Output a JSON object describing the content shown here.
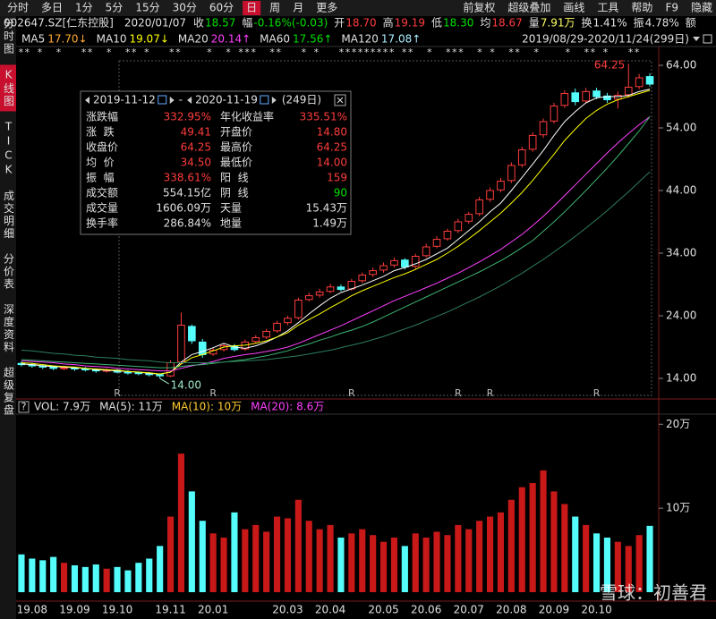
{
  "toolbar": {
    "left_tabs": [
      "分时",
      "多日",
      "1分",
      "5分",
      "15分",
      "30分",
      "60分",
      "日",
      "周",
      "月",
      "更多"
    ],
    "active_tab": 7,
    "right_tabs": [
      "前复权",
      "超级叠加",
      "画线",
      "工具",
      "帮助",
      "F9",
      "隐藏"
    ]
  },
  "quote_bar": {
    "code": "002647.SZ[仁东控股]",
    "date": "2020/01/07",
    "items": [
      {
        "label": "收",
        "value": "18.57",
        "color": "#00e000"
      },
      {
        "label": "幅",
        "value": "-0.16%(-0.03)",
        "color": "#00e000"
      },
      {
        "label": "开",
        "value": "18.70",
        "color": "#ff3c3c"
      },
      {
        "label": "高",
        "value": "19.19",
        "color": "#ff3c3c"
      },
      {
        "label": "低",
        "value": "18.30",
        "color": "#00e000"
      },
      {
        "label": "均",
        "value": "18.67",
        "color": "#ff3c3c"
      },
      {
        "label": "量",
        "value": "7.91万",
        "color": "#ffff66"
      },
      {
        "label": "换",
        "value": "1.41%",
        "color": "#e0e0e0"
      },
      {
        "label": "振",
        "value": "4.78%",
        "color": "#e0e0e0"
      },
      {
        "label": "额"
      }
    ]
  },
  "range": "2019/08/29-2020/11/24(299日)",
  "stars": "** *  *   **  *  ** *   **    *  * ***  **   * *   ********* **  *  ***  * *  **  *    *  ** *   **",
  "sidebar": {
    "tabs": [
      "分时图",
      "K线图",
      "TICK",
      "成交明细",
      "分价表",
      "深度资料",
      "超级复盘"
    ],
    "active_tab": 1
  },
  "stats_panel": {
    "start": "2019-11-12",
    "separator": "-",
    "end": "2020-11-19",
    "days": "(249日)",
    "rows": [
      [
        "涨跌幅",
        "332.95%",
        "年化收益率",
        "335.51%"
      ],
      [
        "涨  跌",
        "49.41",
        "开盘价",
        "14.80"
      ],
      [
        "收盘价",
        "64.25",
        "最高价",
        "64.25"
      ],
      [
        "均  价",
        "34.50",
        "最低价",
        "14.00"
      ],
      [
        "振  幅",
        "338.61%",
        "阳  线",
        "159"
      ],
      [
        "成交额",
        "554.15亿",
        "阴  线",
        "90"
      ],
      [
        "成交量",
        "1606.09万",
        "天量",
        "15.43万"
      ],
      [
        "换手率",
        "286.84%",
        "地量",
        "1.49万"
      ]
    ],
    "value_colors": [
      [
        "#ff3c3c",
        "#ff3c3c"
      ],
      [
        "#ff3c3c",
        "#ff3c3c"
      ],
      [
        "#ff3c3c",
        "#ff3c3c"
      ],
      [
        "#ff3c3c",
        "#ff3c3c"
      ],
      [
        "#ff3c3c",
        "#ff3c3c"
      ],
      [
        "#e0e0e0",
        "#00e000"
      ],
      [
        "#e0e0e0",
        "#e0e0e0"
      ],
      [
        "#e0e0e0",
        "#e0e0e0"
      ]
    ]
  },
  "volume_legend": {
    "help": "?",
    "items": [
      {
        "text": "VOL: 7.9万",
        "color": "#e0e0e0"
      },
      {
        "text": "MA(5): 11万",
        "color": "#e0e0e0"
      },
      {
        "text": "MA(10): 10万",
        "color": "#ffcc33"
      },
      {
        "text": "MA(20): 8.6万",
        "color": "#ff40ff"
      }
    ]
  },
  "watermark": "雪球：初善君",
  "chart_data": [
    {
      "type": "candlestick",
      "up_color": "#ff3c3c",
      "down_color": "#54fcfc",
      "open": [
        16.4,
        16.2,
        16.0,
        15.8,
        15.6,
        15.7,
        15.5,
        15.4,
        15.2,
        15.3,
        15.0,
        14.9,
        14.8,
        14.6,
        14.4,
        16.6,
        22.3,
        19.8,
        17.9,
        18.6,
        19.2,
        18.7,
        19.9,
        20.6,
        21.6,
        22.9,
        23.7,
        26.6,
        27.3,
        27.9,
        28.6,
        28.3,
        29.6,
        30.6,
        31.3,
        32.1,
        32.9,
        31.9,
        33.6,
        35.1,
        36.3,
        37.6,
        39.1,
        40.3,
        42.6,
        44.1,
        45.6,
        48.1,
        50.6,
        52.9,
        55.1,
        57.6,
        59.6,
        58.3,
        59.9,
        59.1,
        58.6,
        59.3,
        60.6,
        62.2
      ],
      "high": [
        16.7,
        16.5,
        16.2,
        16.0,
        16.0,
        15.9,
        15.8,
        15.6,
        15.6,
        15.5,
        15.3,
        15.1,
        15.0,
        14.8,
        16.9,
        24.5,
        22.6,
        20.3,
        18.9,
        19.6,
        19.5,
        20.2,
        20.9,
        21.9,
        23.2,
        24.0,
        26.9,
        27.7,
        28.3,
        29.1,
        29.0,
        29.9,
        30.9,
        31.7,
        32.5,
        33.3,
        33.2,
        33.9,
        35.5,
        36.7,
        37.9,
        39.5,
        40.6,
        43.0,
        44.5,
        46.0,
        48.5,
        51.0,
        53.3,
        55.5,
        58.0,
        60.0,
        60.3,
        60.4,
        60.4,
        59.6,
        59.8,
        64.25,
        62.6,
        62.7
      ],
      "low": [
        15.9,
        15.7,
        15.5,
        15.3,
        15.3,
        15.2,
        15.1,
        14.9,
        14.9,
        14.8,
        14.6,
        14.5,
        14.3,
        14.0,
        14.2,
        16.3,
        19.5,
        17.3,
        17.6,
        18.3,
        18.3,
        18.4,
        19.6,
        20.3,
        21.3,
        22.5,
        23.4,
        26.3,
        26.9,
        27.6,
        27.9,
        28.0,
        29.2,
        30.2,
        30.9,
        31.7,
        31.4,
        31.5,
        33.3,
        34.8,
        36.0,
        37.2,
        38.7,
        39.9,
        42.2,
        43.7,
        45.2,
        47.7,
        50.2,
        52.4,
        54.7,
        57.2,
        57.6,
        57.9,
        58.6,
        58.0,
        57.1,
        58.8,
        60.2,
        60.6
      ],
      "close": [
        16.2,
        16.0,
        15.8,
        15.6,
        15.7,
        15.5,
        15.4,
        15.2,
        15.3,
        15.0,
        14.9,
        14.8,
        14.6,
        14.4,
        16.5,
        22.5,
        20.0,
        17.8,
        18.5,
        19.2,
        18.6,
        19.8,
        20.5,
        21.5,
        22.8,
        23.6,
        26.5,
        27.2,
        27.8,
        28.6,
        28.2,
        29.5,
        30.5,
        31.2,
        32.0,
        32.8,
        31.8,
        33.5,
        35.0,
        36.2,
        37.5,
        39.0,
        40.2,
        42.5,
        44.0,
        45.5,
        48.0,
        50.5,
        52.8,
        55.0,
        57.5,
        59.5,
        58.2,
        59.8,
        59.0,
        58.5,
        59.2,
        60.5,
        62.0,
        61.0
      ],
      "series": [
        {
          "name": "MA5",
          "label": "17.70↓",
          "label_color": "#ffaa33",
          "color": "#ffffff",
          "values": [
            16.3,
            16.2,
            16.0,
            15.9,
            15.8,
            15.7,
            15.6,
            15.4,
            15.3,
            15.2,
            15.1,
            15.0,
            14.8,
            14.7,
            15.0,
            16.6,
            17.8,
            18.3,
            18.9,
            19.6,
            19.0,
            18.8,
            19.2,
            19.8,
            20.6,
            21.6,
            22.9,
            24.3,
            25.6,
            26.8,
            27.7,
            28.3,
            28.9,
            29.6,
            30.3,
            31.2,
            31.7,
            32.3,
            33.0,
            33.9,
            34.8,
            36.2,
            37.6,
            39.0,
            40.6,
            42.0,
            44.0,
            46.1,
            48.2,
            50.4,
            52.8,
            55.0,
            56.6,
            58.0,
            58.8,
            59.0,
            59.0,
            59.2,
            59.8,
            60.2
          ]
        },
        {
          "name": "MA10",
          "label": "19.07↓",
          "label_color": "#ffff00",
          "color": "#ffff00",
          "values": [
            16.5,
            16.4,
            16.2,
            16.0,
            15.9,
            15.8,
            15.6,
            15.5,
            15.4,
            15.3,
            15.1,
            15.0,
            14.9,
            14.7,
            15.0,
            16.3,
            17.3,
            17.8,
            18.4,
            19.0,
            19.2,
            19.3,
            19.6,
            20.0,
            20.6,
            21.3,
            22.5,
            23.4,
            24.3,
            25.3,
            26.2,
            27.2,
            28.0,
            28.7,
            29.4,
            30.1,
            30.7,
            31.4,
            32.2,
            33.0,
            34.0,
            35.1,
            36.3,
            37.6,
            39.0,
            40.4,
            42.0,
            43.7,
            45.6,
            47.7,
            49.8,
            52.0,
            53.8,
            55.5,
            56.8,
            57.8,
            58.5,
            59.0,
            59.5,
            60.0
          ]
        },
        {
          "name": "MA20",
          "label": "20.14↑",
          "label_color": "#ff40ff",
          "color": "#ff40ff",
          "values": [
            16.8,
            16.7,
            16.6,
            16.5,
            16.3,
            16.2,
            16.0,
            15.9,
            15.8,
            15.6,
            15.5,
            15.4,
            15.3,
            15.2,
            15.2,
            15.6,
            16.0,
            16.3,
            16.7,
            17.2,
            17.5,
            17.8,
            18.0,
            18.3,
            18.6,
            19.0,
            19.6,
            20.3,
            21.0,
            21.7,
            22.4,
            23.2,
            24.0,
            24.8,
            25.6,
            26.4,
            27.1,
            27.8,
            28.5,
            29.2,
            30.0,
            30.8,
            31.7,
            32.6,
            33.6,
            34.6,
            35.8,
            37.0,
            38.4,
            39.9,
            41.5,
            43.2,
            44.9,
            46.6,
            48.3,
            50.0,
            51.6,
            53.1,
            54.5,
            55.8
          ]
        },
        {
          "name": "MA60",
          "label": "17.56↑",
          "label_color": "#00e000",
          "color": "#3cb371",
          "values": [
            17.0,
            16.9,
            16.8,
            16.7,
            16.6,
            16.5,
            16.4,
            16.3,
            16.2,
            16.1,
            16.0,
            15.9,
            15.8,
            15.7,
            15.7,
            15.9,
            16.1,
            16.2,
            16.4,
            16.6,
            16.8,
            17.0,
            17.3,
            17.6,
            18.0,
            18.4,
            19.0,
            19.5,
            20.1,
            20.6,
            21.2,
            21.7,
            22.3,
            23.0,
            23.8,
            24.6,
            25.4,
            26.2,
            27.0,
            27.8,
            28.6,
            29.4,
            30.2,
            31.0,
            31.9,
            32.8,
            33.8,
            34.9,
            36.0,
            37.5,
            39.0,
            40.6,
            42.3,
            44.0,
            45.8,
            47.6,
            49.5,
            51.5,
            53.5,
            55.8
          ]
        },
        {
          "name": "MA120",
          "label": "17.08↑",
          "label_color": "#aaf0ff",
          "color": "#2e7d5b",
          "values": [
            18.5,
            18.4,
            18.2,
            18.0,
            17.9,
            17.7,
            17.6,
            17.4,
            17.3,
            17.2,
            17.0,
            16.9,
            16.8,
            16.6,
            16.5,
            16.5,
            16.5,
            16.5,
            16.5,
            16.6,
            16.7,
            16.8,
            16.9,
            17.0,
            17.2,
            17.4,
            17.6,
            17.9,
            18.2,
            18.5,
            18.9,
            19.3,
            19.7,
            20.2,
            20.7,
            21.3,
            21.9,
            22.5,
            23.2,
            23.9,
            24.6,
            25.4,
            26.2,
            27.0,
            27.9,
            28.8,
            29.8,
            30.8,
            31.9,
            33.0,
            34.2,
            35.4,
            36.7,
            38.0,
            39.4,
            40.8,
            42.3,
            43.8,
            45.4,
            47.0
          ]
        }
      ],
      "low_label": "14.00",
      "high_label": "64.25",
      "markers": [
        null,
        null,
        null,
        null,
        null,
        null,
        null,
        null,
        null,
        "R",
        null,
        null,
        null,
        null,
        null,
        null,
        null,
        null,
        "R",
        null,
        null,
        null,
        null,
        null,
        null,
        null,
        null,
        null,
        null,
        null,
        null,
        "R",
        null,
        null,
        null,
        null,
        null,
        null,
        null,
        null,
        null,
        "R",
        null,
        null,
        "R",
        null,
        null,
        null,
        null,
        null,
        null,
        null,
        null,
        null,
        "R",
        null,
        null,
        null,
        null,
        null
      ],
      "ylim": [
        10.86,
        66.57
      ],
      "yticks": [
        {
          "value": 14,
          "label": "14.00"
        },
        {
          "value": 24,
          "label": "24.00"
        },
        {
          "value": 34,
          "label": "34.00"
        },
        {
          "value": 44,
          "label": "44.00"
        },
        {
          "value": 54,
          "label": "54.00"
        },
        {
          "value": 64,
          "label": "64.00"
        }
      ]
    },
    {
      "type": "bar",
      "up_color": "#c81818",
      "down_color": "#54fcfc",
      "categories": [
        null,
        "19.08",
        null,
        null,
        null,
        "19.09",
        null,
        null,
        null,
        "19.10",
        null,
        null,
        null,
        null,
        "19.11",
        null,
        null,
        null,
        "20.01",
        null,
        null,
        null,
        null,
        null,
        null,
        "20.03",
        null,
        null,
        null,
        "20.04",
        null,
        null,
        null,
        null,
        "20.05",
        null,
        null,
        null,
        "20.06",
        null,
        null,
        null,
        "20.07",
        null,
        null,
        null,
        "20.08",
        null,
        null,
        null,
        "20.09",
        null,
        null,
        null,
        "20.10",
        null,
        null,
        null,
        null,
        null
      ],
      "values": [
        4.5,
        4.0,
        3.8,
        4.2,
        3.5,
        3.2,
        3.0,
        3.3,
        2.8,
        3.0,
        2.6,
        3.5,
        4.0,
        5.5,
        9.0,
        16.5,
        12.0,
        8.5,
        7.0,
        6.5,
        9.5,
        7.5,
        8.0,
        7.2,
        9.0,
        8.8,
        11.0,
        8.5,
        7.5,
        8.0,
        6.5,
        7.0,
        7.5,
        6.8,
        6.0,
        6.5,
        5.5,
        7.0,
        6.5,
        7.2,
        6.8,
        8.0,
        7.5,
        8.5,
        9.0,
        9.5,
        11.0,
        12.5,
        13.0,
        14.5,
        12.0,
        10.5,
        9.0,
        8.0,
        7.0,
        6.5,
        6.0,
        5.5,
        6.8,
        7.9
      ],
      "ylim": [
        -0.85,
        21.2
      ],
      "yticks": [
        {
          "value": 10,
          "label": "10万"
        },
        {
          "value": 20,
          "label": "20万"
        }
      ]
    }
  ]
}
